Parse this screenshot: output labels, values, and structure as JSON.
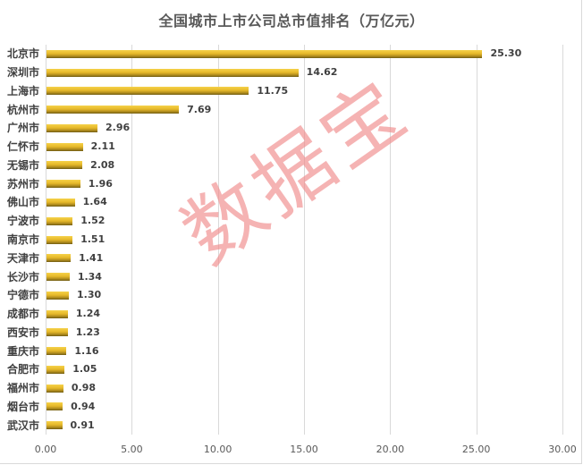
{
  "chart_data": {
    "type": "bar",
    "orientation": "horizontal",
    "title": "全国城市上市公司总市值排名（万亿元）",
    "xlabel": "",
    "ylabel": "",
    "xlim": [
      0,
      30
    ],
    "x_ticks": [
      "0.00",
      "5.00",
      "10.00",
      "15.00",
      "20.00",
      "25.00",
      "30.00"
    ],
    "grid": true,
    "legend": null,
    "categories": [
      "北京市",
      "深圳市",
      "上海市",
      "杭州市",
      "广州市",
      "仁怀市",
      "无锡市",
      "苏州市",
      "佛山市",
      "宁波市",
      "南京市",
      "天津市",
      "长沙市",
      "宁德市",
      "成都市",
      "西安市",
      "重庆市",
      "合肥市",
      "福州市",
      "烟台市",
      "武汉市"
    ],
    "values": [
      25.3,
      14.62,
      11.75,
      7.69,
      2.96,
      2.11,
      2.08,
      1.96,
      1.64,
      1.52,
      1.51,
      1.41,
      1.34,
      1.3,
      1.24,
      1.23,
      1.16,
      1.05,
      0.98,
      0.94,
      0.91
    ],
    "value_labels": [
      "25.30",
      "14.62",
      "11.75",
      "7.69",
      "2.96",
      "2.11",
      "2.08",
      "1.96",
      "1.64",
      "1.52",
      "1.51",
      "1.41",
      "1.34",
      "1.30",
      "1.24",
      "1.23",
      "1.16",
      "1.05",
      "0.98",
      "0.94",
      "0.91"
    ],
    "bar_color": "#e6b82a",
    "watermark": "数据宝"
  }
}
